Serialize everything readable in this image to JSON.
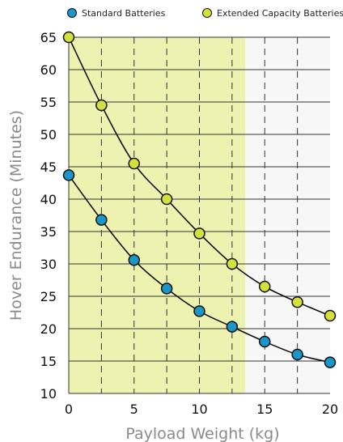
{
  "chart_data": {
    "type": "line",
    "xlabel": "Payload Weight (kg)",
    "ylabel": "Hover Endurance (Minutes)",
    "xlim": [
      0,
      20
    ],
    "ylim": [
      10,
      65
    ],
    "x_ticks": [
      "0",
      "5",
      "10",
      "15",
      "20"
    ],
    "y_ticks": [
      "10",
      "15",
      "20",
      "25",
      "30",
      "35",
      "40",
      "45",
      "50",
      "55",
      "60",
      "65"
    ],
    "vertical_dashed_gridlines_at": [
      2.5,
      5,
      7.5,
      10,
      12.5,
      15,
      17.5
    ],
    "shaded_region_x": [
      0,
      13.5
    ],
    "shaded_color": "#eef2b0",
    "unshaded_color": "#f7f7f7",
    "legend_position": "top",
    "series": [
      {
        "name": "Standard Batteries",
        "color": "#1a96c8",
        "x": [
          0,
          2.5,
          5,
          7.5,
          10,
          12.5,
          15,
          17.5,
          20
        ],
        "values": [
          43.7,
          36.8,
          30.6,
          26.2,
          22.7,
          20.3,
          18.0,
          16.0,
          14.8
        ]
      },
      {
        "name": "Extended Capacity Batteries",
        "color": "#d4e03c",
        "x": [
          0,
          2.5,
          5,
          7.5,
          10,
          12.5,
          15,
          17.5,
          20
        ],
        "values": [
          65.0,
          54.5,
          45.5,
          40.0,
          34.7,
          30.0,
          26.5,
          24.1,
          22.0
        ]
      }
    ]
  }
}
